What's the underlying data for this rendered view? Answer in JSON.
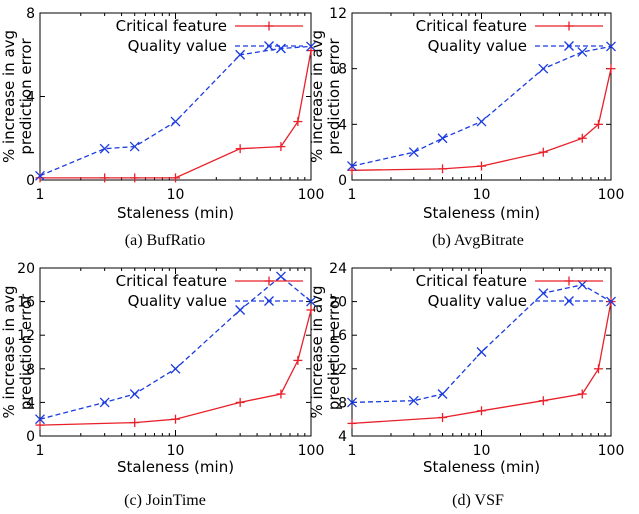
{
  "colors": {
    "critical": "#e8202a",
    "quality": "#1a3be0",
    "axis": "#000000"
  },
  "chart_data": [
    {
      "type": "line",
      "caption": "(a)  BufRatio",
      "xlabel": "Staleness (min)",
      "ylabel_lines": [
        "% increase in avg",
        "prediction error"
      ],
      "xscale": "log",
      "xlim": [
        1,
        100
      ],
      "ylim": [
        0,
        8
      ],
      "xticks": [
        1,
        10,
        100
      ],
      "yticks": [
        0,
        4,
        8
      ],
      "legend_position": "top-right",
      "series": [
        {
          "name": "Critical feature",
          "color": "#e8202a",
          "marker": "plus",
          "style": "solid",
          "x": [
            1,
            3,
            5,
            10,
            30,
            60,
            80,
            100
          ],
          "y": [
            0.1,
            0.1,
            0.1,
            0.1,
            1.5,
            1.6,
            2.8,
            6.2
          ]
        },
        {
          "name": "Quality value",
          "color": "#1a3be0",
          "marker": "x",
          "style": "dashed",
          "x": [
            1,
            3,
            5,
            10,
            30,
            60,
            100
          ],
          "y": [
            0.2,
            1.5,
            1.6,
            2.8,
            6.0,
            6.3,
            6.4
          ]
        }
      ]
    },
    {
      "type": "line",
      "caption": "(b)  AvgBitrate",
      "xlabel": "Staleness (min)",
      "ylabel_lines": [
        "% increase in avg",
        "prediction error"
      ],
      "xscale": "log",
      "xlim": [
        1,
        100
      ],
      "ylim": [
        0,
        12
      ],
      "xticks": [
        1,
        10,
        100
      ],
      "yticks": [
        0,
        4,
        8,
        12
      ],
      "legend_position": "top-right",
      "series": [
        {
          "name": "Critical feature",
          "color": "#e8202a",
          "marker": "plus",
          "style": "solid",
          "x": [
            1,
            5,
            10,
            30,
            60,
            80,
            100
          ],
          "y": [
            0.7,
            0.8,
            1.0,
            2.0,
            3.0,
            4.0,
            8.0
          ]
        },
        {
          "name": "Quality value",
          "color": "#1a3be0",
          "marker": "x",
          "style": "dashed",
          "x": [
            1,
            3,
            5,
            10,
            30,
            60,
            100
          ],
          "y": [
            1.0,
            2.0,
            3.0,
            4.2,
            8.0,
            9.2,
            9.6
          ]
        }
      ]
    },
    {
      "type": "line",
      "caption": "(c)  JoinTime",
      "xlabel": "Staleness (min)",
      "ylabel_lines": [
        "% increase in avg",
        "prediction error"
      ],
      "xscale": "log",
      "xlim": [
        1,
        100
      ],
      "ylim": [
        0,
        20
      ],
      "xticks": [
        1,
        10,
        100
      ],
      "yticks": [
        0,
        4,
        8,
        12,
        16,
        20
      ],
      "legend_position": "top-right",
      "series": [
        {
          "name": "Critical feature",
          "color": "#e8202a",
          "marker": "plus",
          "style": "solid",
          "x": [
            1,
            5,
            10,
            30,
            60,
            80,
            100
          ],
          "y": [
            1.3,
            1.6,
            2.0,
            4.0,
            5.0,
            9.0,
            15.0
          ]
        },
        {
          "name": "Quality value",
          "color": "#1a3be0",
          "marker": "x",
          "style": "dashed",
          "x": [
            1,
            3,
            5,
            10,
            30,
            60,
            100
          ],
          "y": [
            2.0,
            4.0,
            5.0,
            8.0,
            15.0,
            19.0,
            16.0
          ]
        }
      ]
    },
    {
      "type": "line",
      "caption": "(d)  VSF",
      "xlabel": "Staleness (min)",
      "ylabel_lines": [
        "% increase in avg",
        "prediction error"
      ],
      "xscale": "log",
      "xlim": [
        1,
        100
      ],
      "ylim": [
        4,
        24
      ],
      "xticks": [
        1,
        10,
        100
      ],
      "yticks": [
        4,
        8,
        12,
        16,
        20,
        24
      ],
      "legend_position": "top-right",
      "series": [
        {
          "name": "Critical feature",
          "color": "#e8202a",
          "marker": "plus",
          "style": "solid",
          "x": [
            1,
            5,
            10,
            30,
            60,
            80,
            100
          ],
          "y": [
            5.5,
            6.2,
            7.0,
            8.2,
            9.0,
            12.0,
            20.0
          ]
        },
        {
          "name": "Quality value",
          "color": "#1a3be0",
          "marker": "x",
          "style": "dashed",
          "x": [
            1,
            3,
            5,
            10,
            30,
            60,
            100
          ],
          "y": [
            8.0,
            8.2,
            9.0,
            14.0,
            21.0,
            22.0,
            20.0
          ]
        }
      ]
    }
  ]
}
